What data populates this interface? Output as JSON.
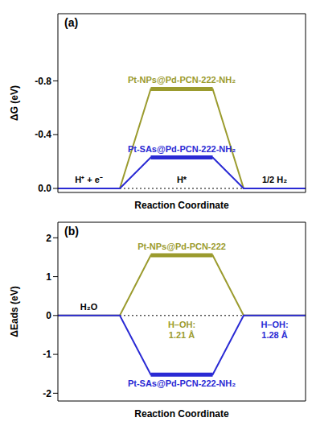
{
  "chart_data": [
    {
      "type": "line",
      "title": "(a)",
      "y_label": "ΔG (eV)",
      "x_label": "Reaction Coordinate",
      "x": [
        0,
        1,
        1.5,
        2.5,
        3,
        4
      ],
      "xlim": [
        0,
        4
      ],
      "ylim": [
        0.03,
        -1.3
      ],
      "yticks": [
        -0.8,
        -0.4,
        {
          "value": 0,
          "label": "0.0"
        }
      ],
      "tick_labels": "y",
      "series": [
        {
          "name": "Pt-NPs@Pd-PCN-222-NH₂",
          "color": "#9b9b2e",
          "values": [
            0,
            0,
            -0.74,
            -0.74,
            0,
            0
          ]
        },
        {
          "name": "Pt-SAs@Pd-PCN-222-NH₂",
          "color": "#2a2ad4",
          "values": [
            0,
            0,
            -0.23,
            -0.23,
            0,
            0
          ]
        }
      ],
      "annotations": [
        "H⁺ + e⁻",
        "H*",
        "1/2 H₂"
      ]
    },
    {
      "type": "line",
      "title": "(b)",
      "y_label": "ΔEads (eV)",
      "x_label": "Reaction Coordinate",
      "x": [
        0,
        1,
        1.5,
        2.5,
        3,
        4
      ],
      "xlim": [
        0,
        4
      ],
      "ylim": [
        -2.2,
        2.4
      ],
      "yticks": [
        -2,
        -1,
        0,
        1,
        2
      ],
      "tick_labels": "y",
      "series": [
        {
          "name": "Pt-NPs@Pd-PCN-222",
          "color": "#9b9b2e",
          "values": [
            0,
            0,
            1.55,
            1.55,
            0,
            0
          ]
        },
        {
          "name": "Pt-SAs@Pd-PCN-222-NH₂",
          "color": "#2a2ad4",
          "values": [
            0,
            0,
            -1.52,
            -1.52,
            0,
            0
          ]
        }
      ],
      "annotations": [
        "H₂O",
        "H–OH:\n1.21 Å",
        "H–OH:\n1.28 Å"
      ]
    }
  ]
}
